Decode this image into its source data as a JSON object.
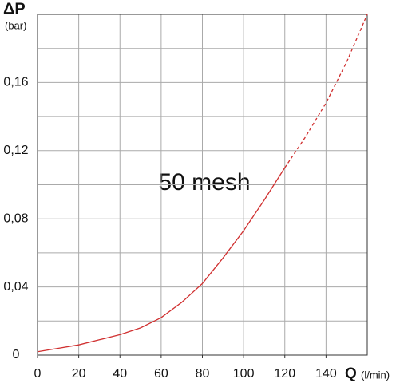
{
  "chart_data": {
    "type": "line",
    "y_label": "ΔP",
    "y_unit": "(bar)",
    "x_label": "Q",
    "x_unit": "(l/min)",
    "annotation": "50 mesh",
    "xlim": [
      0,
      160
    ],
    "xticks": [
      0,
      20,
      40,
      60,
      80,
      100,
      120,
      140
    ],
    "ylim": [
      0,
      0.2
    ],
    "yticks": [
      0,
      {
        "value": 0.04,
        "label": "0,04"
      },
      {
        "value": 0.08,
        "label": "0,08"
      },
      {
        "value": 0.12,
        "label": "0,12"
      },
      {
        "value": 0.16,
        "label": "0,16"
      }
    ],
    "y_minor_grid": [
      0.02,
      0.06,
      0.1,
      0.14,
      0.18
    ],
    "x_grid": [
      20,
      40,
      60,
      80,
      100,
      120,
      140
    ],
    "grid": true,
    "series": [
      {
        "color": "#d03030",
        "dashed": false,
        "x": [
          0,
          10,
          20,
          30,
          40,
          50,
          60,
          70,
          80,
          90,
          100,
          110,
          120
        ],
        "values": [
          0.002,
          0.004,
          0.006,
          0.009,
          0.012,
          0.016,
          0.022,
          0.031,
          0.042,
          0.057,
          0.073,
          0.091,
          0.11
        ]
      },
      {
        "color": "#d03030",
        "dashed": true,
        "x": [
          120,
          130,
          140,
          150,
          160
        ],
        "values": [
          0.11,
          0.128,
          0.148,
          0.172,
          0.2
        ]
      }
    ]
  }
}
